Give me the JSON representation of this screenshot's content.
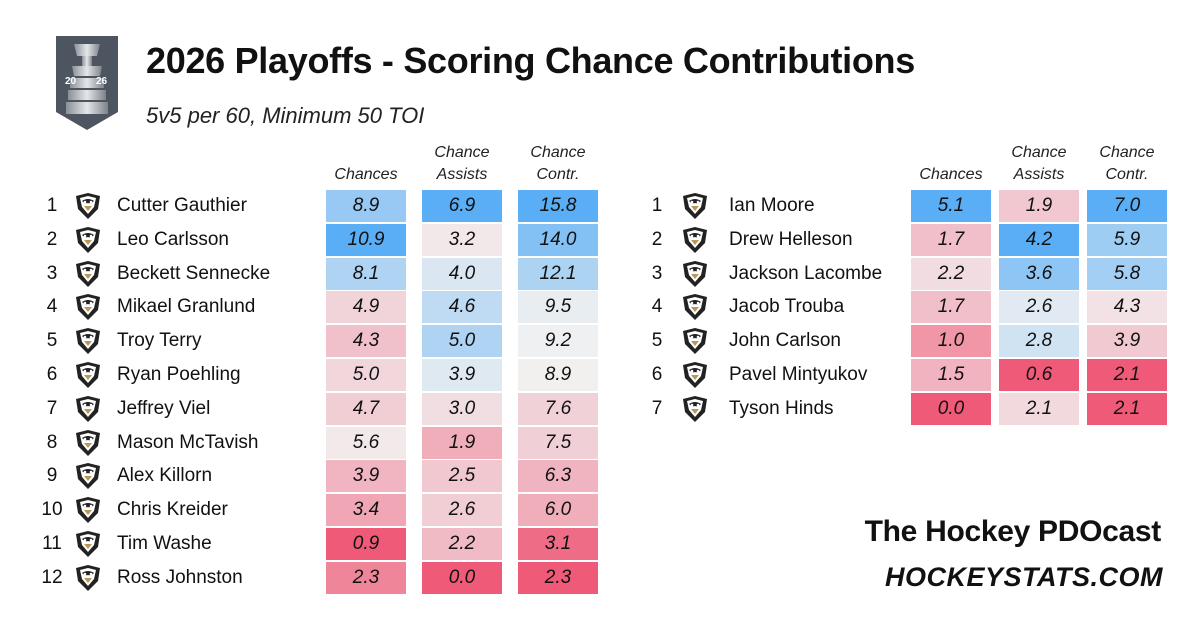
{
  "header": {
    "title": "2026 Playoffs - Scoring Chance Contributions",
    "subtitle": "5v5 per 60, Minimum 50 TOI",
    "logo_text_left": "20",
    "logo_text_right": "26"
  },
  "columns": [
    {
      "line1": "",
      "line2": "Chances"
    },
    {
      "line1": "Chance",
      "line2": "Assists"
    },
    {
      "line1": "Chance",
      "line2": "Contr."
    }
  ],
  "chart_data": {
    "type": "table",
    "title": "2026 Playoffs - Scoring Chance Contributions",
    "subtitle": "5v5 per 60, Minimum 50 TOI",
    "color_scale": {
      "low": "#ee5a77",
      "mid": "#f2f2f2",
      "high": "#5aaef5"
    },
    "tables": [
      {
        "rows": [
          {
            "rank": "1",
            "name": "Cutter Gauthier",
            "chances": "8.9",
            "assists": "6.9",
            "contr": "15.8"
          },
          {
            "rank": "2",
            "name": "Leo Carlsson",
            "chances": "10.9",
            "assists": "3.2",
            "contr": "14.0"
          },
          {
            "rank": "3",
            "name": "Beckett Sennecke",
            "chances": "8.1",
            "assists": "4.0",
            "contr": "12.1"
          },
          {
            "rank": "4",
            "name": "Mikael Granlund",
            "chances": "4.9",
            "assists": "4.6",
            "contr": "9.5"
          },
          {
            "rank": "5",
            "name": "Troy Terry",
            "chances": "4.3",
            "assists": "5.0",
            "contr": "9.2"
          },
          {
            "rank": "6",
            "name": "Ryan Poehling",
            "chances": "5.0",
            "assists": "3.9",
            "contr": "8.9"
          },
          {
            "rank": "7",
            "name": "Jeffrey Viel",
            "chances": "4.7",
            "assists": "3.0",
            "contr": "7.6"
          },
          {
            "rank": "8",
            "name": "Mason McTavish",
            "chances": "5.6",
            "assists": "1.9",
            "contr": "7.5"
          },
          {
            "rank": "9",
            "name": "Alex Killorn",
            "chances": "3.9",
            "assists": "2.5",
            "contr": "6.3"
          },
          {
            "rank": "10",
            "name": "Chris Kreider",
            "chances": "3.4",
            "assists": "2.6",
            "contr": "6.0"
          },
          {
            "rank": "11",
            "name": "Tim Washe",
            "chances": "0.9",
            "assists": "2.2",
            "contr": "3.1"
          },
          {
            "rank": "12",
            "name": "Ross Johnston",
            "chances": "2.3",
            "assists": "0.0",
            "contr": "2.3"
          }
        ]
      },
      {
        "rows": [
          {
            "rank": "1",
            "name": "Ian Moore",
            "chances": "5.1",
            "assists": "1.9",
            "contr": "7.0"
          },
          {
            "rank": "2",
            "name": "Drew Helleson",
            "chances": "1.7",
            "assists": "4.2",
            "contr": "5.9"
          },
          {
            "rank": "3",
            "name": "Jackson Lacombe",
            "chances": "2.2",
            "assists": "3.6",
            "contr": "5.8"
          },
          {
            "rank": "4",
            "name": "Jacob Trouba",
            "chances": "1.7",
            "assists": "2.6",
            "contr": "4.3"
          },
          {
            "rank": "5",
            "name": "John Carlson",
            "chances": "1.0",
            "assists": "2.8",
            "contr": "3.9"
          },
          {
            "rank": "6",
            "name": "Pavel Mintyukov",
            "chances": "1.5",
            "assists": "0.6",
            "contr": "2.1"
          },
          {
            "rank": "7",
            "name": "Tyson Hinds",
            "chances": "0.0",
            "assists": "2.1",
            "contr": "2.1"
          }
        ]
      }
    ]
  },
  "branding": {
    "line1": "The Hockey PDOcast",
    "line2": "HOCKEYSTATS.COM"
  }
}
